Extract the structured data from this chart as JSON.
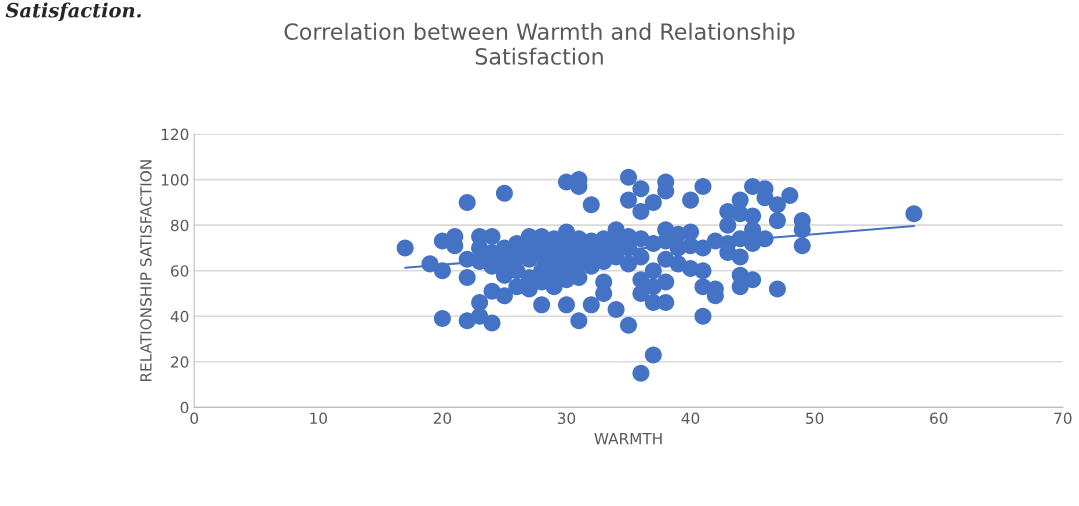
{
  "chart_data": {
    "type": "scatter",
    "title": "Correlation between Warmth and Relationship\nSatisfaction",
    "xlabel": "WARMTH",
    "ylabel": "RELATIONSHIP SATISFACTION",
    "annotations": [
      "Satisfaction."
    ],
    "xlim": [
      0,
      70
    ],
    "xticks": [
      0,
      10,
      20,
      30,
      40,
      50,
      60,
      70
    ],
    "ylim": [
      0,
      120
    ],
    "yticks": [
      0,
      20,
      40,
      60,
      80,
      100,
      120
    ],
    "grid": "y",
    "legend": false,
    "series": [
      {
        "marker": "circle",
        "color": "#4472c4",
        "x": [
          17,
          19,
          20,
          20,
          20,
          21,
          21,
          22,
          22,
          22,
          22,
          23,
          23,
          23,
          23,
          23,
          24,
          24,
          24,
          24,
          24,
          25,
          25,
          25,
          25,
          25,
          26,
          26,
          26,
          26,
          27,
          27,
          27,
          27,
          27,
          28,
          28,
          28,
          28,
          28,
          28,
          29,
          29,
          29,
          29,
          29,
          30,
          30,
          30,
          30,
          30,
          30,
          30,
          31,
          31,
          31,
          31,
          31,
          31,
          31,
          32,
          32,
          32,
          32,
          32,
          33,
          33,
          33,
          33,
          33,
          34,
          34,
          34,
          34,
          35,
          35,
          35,
          35,
          35,
          35,
          36,
          36,
          36,
          36,
          36,
          36,
          36,
          37,
          37,
          37,
          37,
          37,
          37,
          38,
          38,
          38,
          38,
          38,
          38,
          38,
          39,
          39,
          39,
          40,
          40,
          40,
          40,
          41,
          41,
          41,
          41,
          41,
          42,
          42,
          42,
          43,
          43,
          43,
          43,
          44,
          44,
          44,
          44,
          44,
          44,
          45,
          45,
          45,
          45,
          45,
          46,
          46,
          46,
          47,
          47,
          47,
          48,
          49,
          49,
          49,
          58
        ],
        "values": [
          70,
          63,
          73,
          60,
          39,
          75,
          71,
          90,
          65,
          57,
          38,
          75,
          70,
          64,
          46,
          40,
          75,
          68,
          62,
          51,
          37,
          94,
          70,
          64,
          58,
          49,
          72,
          66,
          60,
          53,
          75,
          70,
          65,
          57,
          52,
          75,
          71,
          66,
          60,
          55,
          45,
          74,
          70,
          64,
          58,
          53,
          99,
          77,
          72,
          67,
          61,
          56,
          45,
          100,
          97,
          74,
          69,
          63,
          57,
          38,
          89,
          73,
          67,
          62,
          45,
          74,
          70,
          64,
          55,
          50,
          78,
          72,
          66,
          43,
          101,
          91,
          75,
          70,
          63,
          36,
          96,
          86,
          74,
          66,
          56,
          50,
          15,
          90,
          72,
          60,
          53,
          46,
          23,
          99,
          95,
          78,
          73,
          65,
          55,
          46,
          76,
          70,
          63,
          91,
          77,
          71,
          61,
          97,
          70,
          60,
          53,
          40,
          73,
          52,
          49,
          86,
          80,
          72,
          68,
          91,
          85,
          74,
          66,
          58,
          53,
          97,
          84,
          78,
          72,
          56,
          96,
          92,
          74,
          89,
          82,
          52,
          93,
          82,
          78,
          71,
          85
        ]
      },
      {
        "type": "line",
        "color": "#4472c4",
        "x": [
          17,
          58
        ],
        "values": [
          61.3,
          79.6
        ],
        "marker": "none"
      }
    ]
  }
}
